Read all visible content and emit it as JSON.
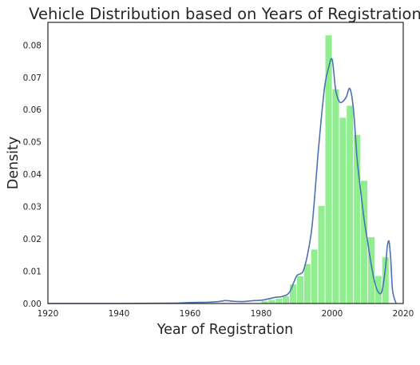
{
  "chart_data": {
    "type": "bar",
    "title": "Vehicle Distribution based on Years of Registration",
    "xlabel": "Year of Registration",
    "ylabel": "Density",
    "xlim": [
      1920,
      2020
    ],
    "ylim": [
      0,
      0.087
    ],
    "xticks": [
      1920,
      1940,
      1960,
      1980,
      2000,
      2020
    ],
    "yticks": [
      0.0,
      0.01,
      0.02,
      0.03,
      0.04,
      0.05,
      0.06,
      0.07,
      0.08
    ],
    "grid": false,
    "colors": {
      "bars": "#90EE90",
      "kde": "#4C72B0",
      "frame": "#262626"
    },
    "histogram": {
      "bin_width": 2,
      "bins": [
        {
          "x0": 1980,
          "value": 0.0008
        },
        {
          "x0": 1982,
          "value": 0.0012
        },
        {
          "x0": 1984,
          "value": 0.0016
        },
        {
          "x0": 1986,
          "value": 0.0024
        },
        {
          "x0": 1988,
          "value": 0.006
        },
        {
          "x0": 1990,
          "value": 0.0085
        },
        {
          "x0": 1992,
          "value": 0.0123
        },
        {
          "x0": 1994,
          "value": 0.0168
        },
        {
          "x0": 1996,
          "value": 0.0303
        },
        {
          "x0": 1998,
          "value": 0.0831
        },
        {
          "x0": 2000,
          "value": 0.0664
        },
        {
          "x0": 2002,
          "value": 0.0576
        },
        {
          "x0": 2004,
          "value": 0.0613
        },
        {
          "x0": 2006,
          "value": 0.0523
        },
        {
          "x0": 2008,
          "value": 0.0381
        },
        {
          "x0": 2010,
          "value": 0.0206
        },
        {
          "x0": 2012,
          "value": 0.0086
        },
        {
          "x0": 2014,
          "value": 0.0144
        }
      ]
    },
    "kde": {
      "x": [
        1920,
        1940,
        1955,
        1960,
        1965,
        1968,
        1970,
        1972,
        1975,
        1978,
        1980,
        1982,
        1984,
        1986,
        1988,
        1990,
        1992,
        1994,
        1995,
        1996,
        1997,
        1998,
        1999,
        2000,
        2001,
        2002,
        2003,
        2004,
        2005,
        2006,
        2007,
        2008,
        2009,
        2010,
        2011,
        2012,
        2013,
        2014,
        2015,
        2015.5,
        2016,
        2016.5,
        2017,
        2018
      ],
      "y": [
        0.0,
        0.0,
        0.0001,
        0.0003,
        0.0004,
        0.0006,
        0.0009,
        0.0007,
        0.0006,
        0.0009,
        0.001,
        0.0014,
        0.0019,
        0.0022,
        0.0035,
        0.0085,
        0.0105,
        0.021,
        0.032,
        0.046,
        0.058,
        0.068,
        0.073,
        0.0755,
        0.066,
        0.0625,
        0.0625,
        0.064,
        0.0665,
        0.06,
        0.045,
        0.035,
        0.026,
        0.019,
        0.012,
        0.0065,
        0.0035,
        0.0038,
        0.011,
        0.0175,
        0.0192,
        0.0135,
        0.004,
        0.0
      ]
    }
  }
}
